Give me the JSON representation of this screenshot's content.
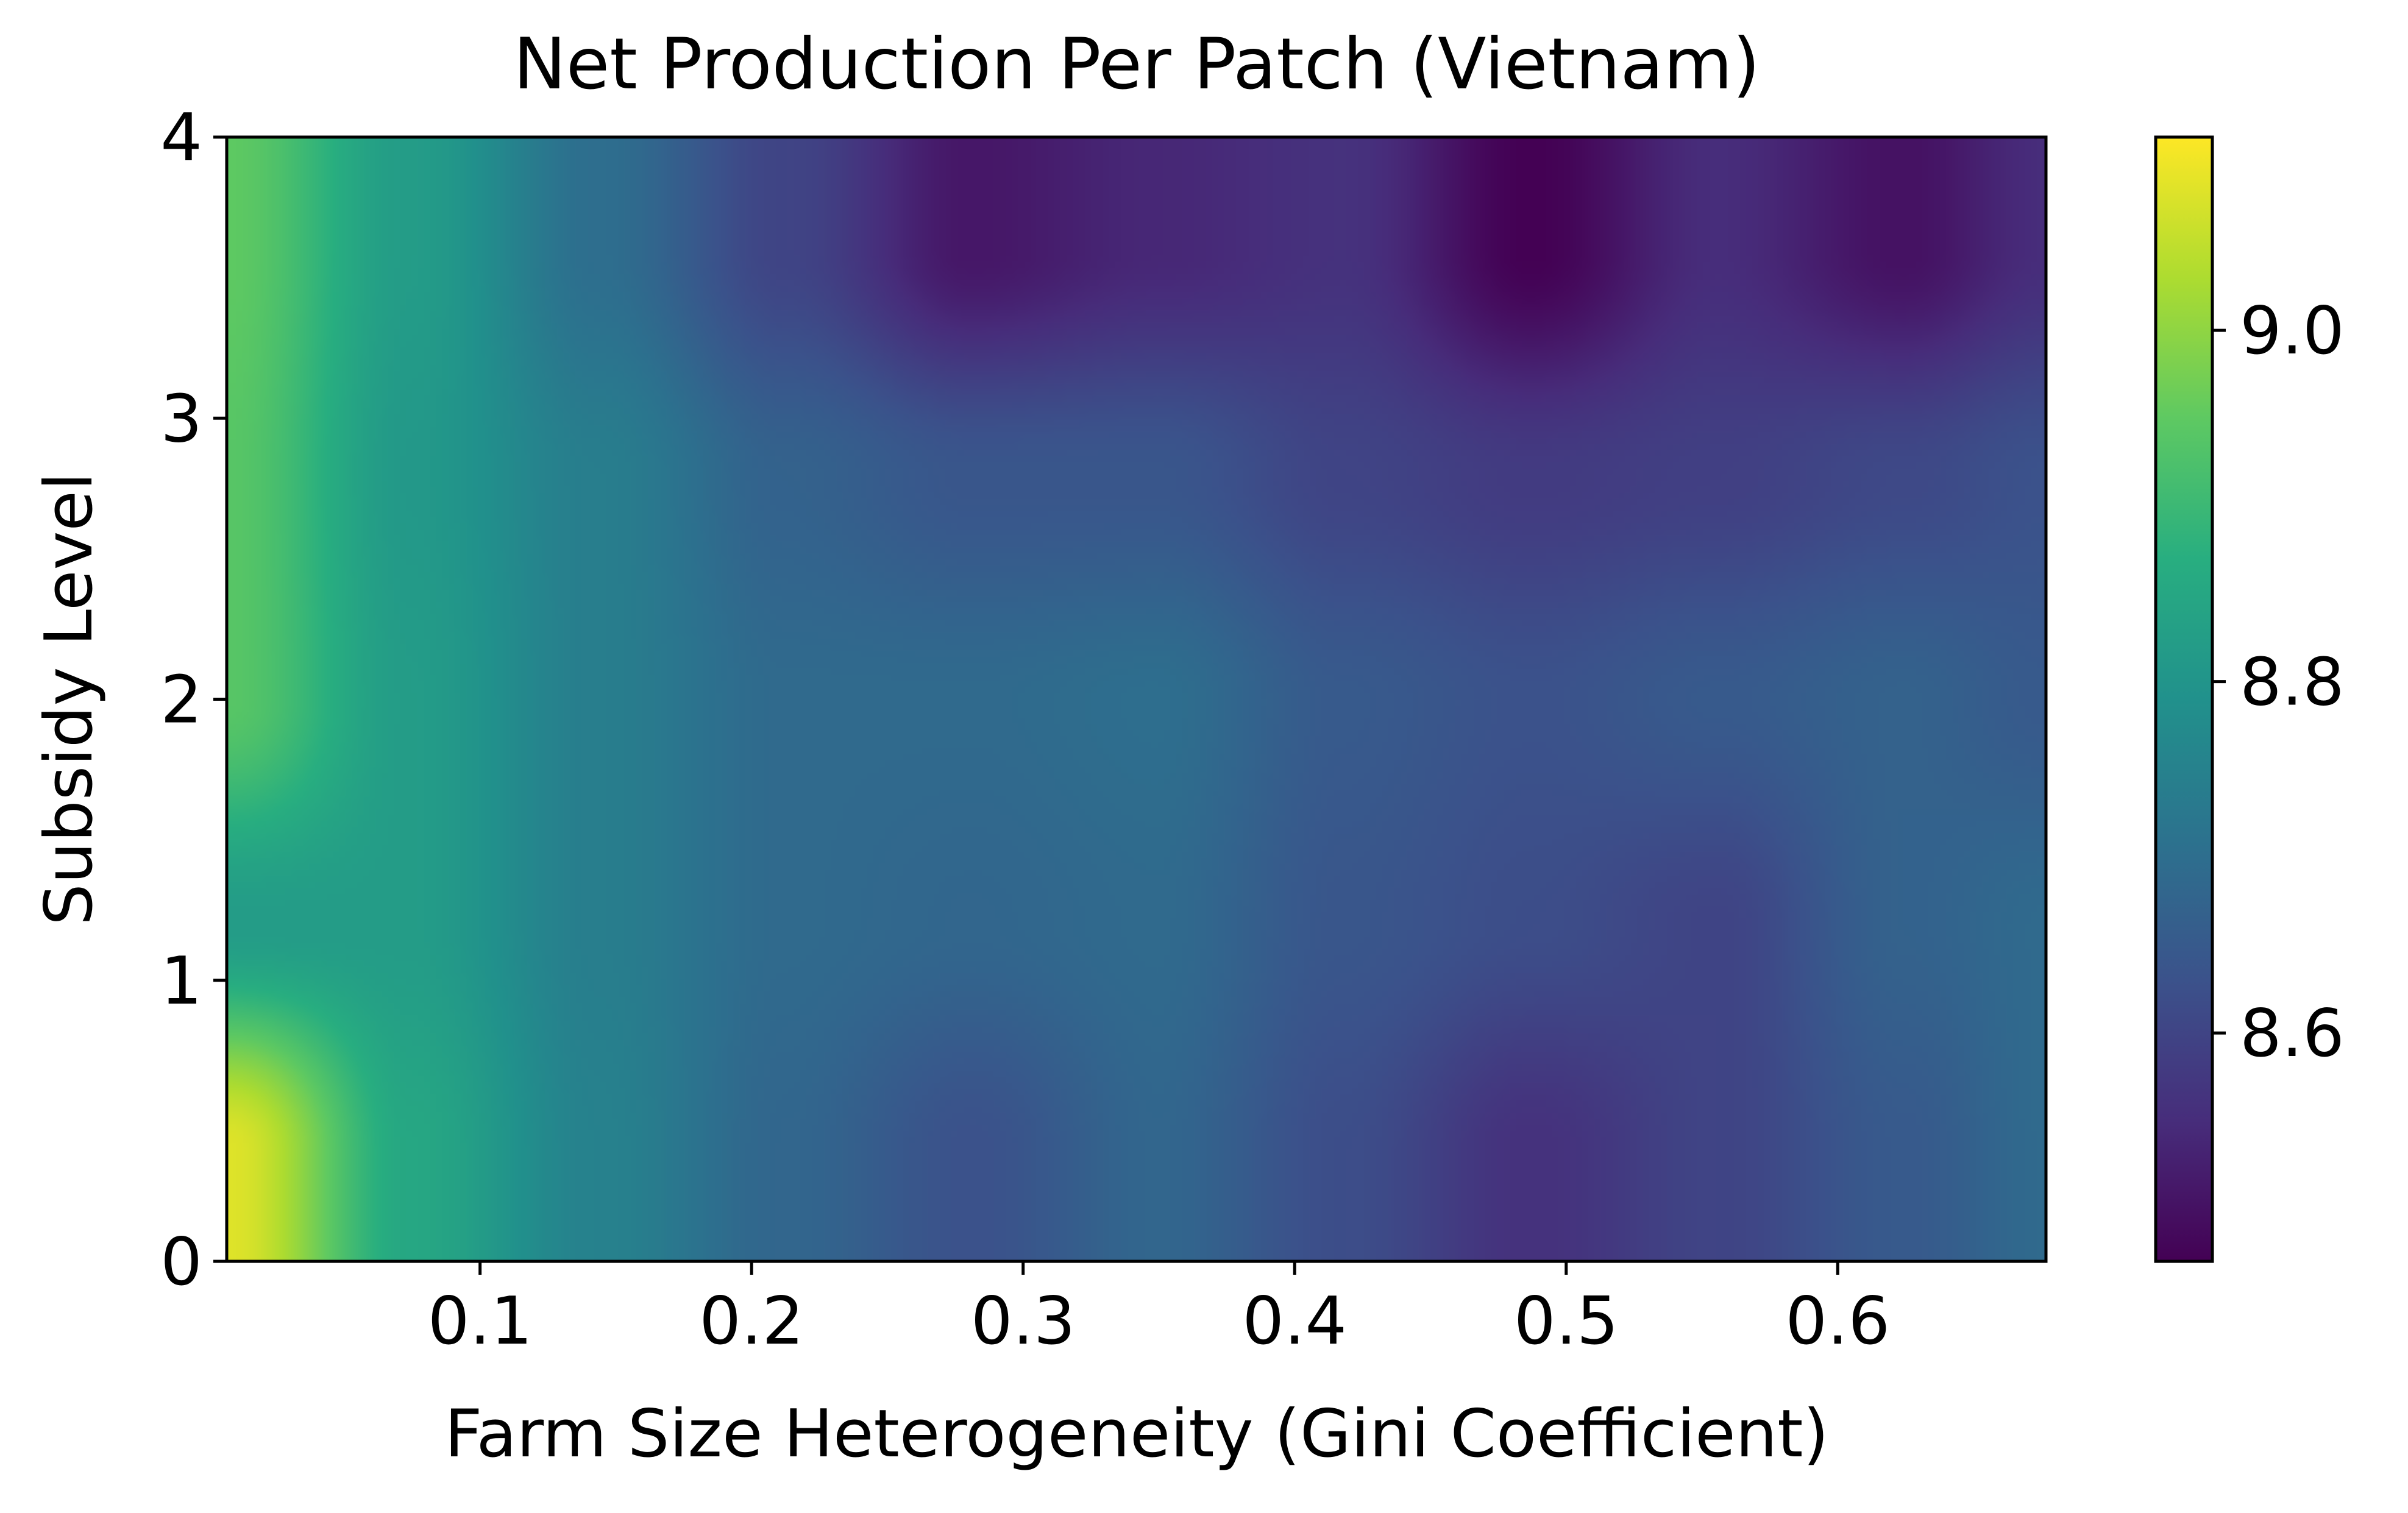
{
  "chart_data": {
    "type": "heatmap",
    "title": "Net Production Per Patch (Vietnam)",
    "xlabel": "Farm Size Heterogeneity (Gini Coefficient)",
    "ylabel": "Subsidy Level",
    "colormap": "viridis",
    "interpolation": "smooth",
    "xlim": [
      0.0067,
      0.6767
    ],
    "ylim": [
      0,
      4
    ],
    "xticks": [
      0.1,
      0.2,
      0.3,
      0.4,
      0.5,
      0.6
    ],
    "xtick_labels": [
      "0.1",
      "0.2",
      "0.3",
      "0.4",
      "0.5",
      "0.6"
    ],
    "yticks": [
      0,
      1,
      2,
      3,
      4
    ],
    "ytick_labels": [
      "0",
      "1",
      "2",
      "3",
      "4"
    ],
    "colorbar": {
      "range": [
        8.47,
        9.11
      ],
      "ticks": [
        8.6,
        8.8,
        9.0
      ],
      "tick_labels": [
        "8.6",
        "8.8",
        "9.0"
      ]
    },
    "x": [
      0.0067,
      0.0753,
      0.1439,
      0.2125,
      0.2811,
      0.3497,
      0.4183,
      0.4869,
      0.5555,
      0.6241,
      0.6767
    ],
    "y": [
      0.4,
      1.2,
      2.0,
      2.8,
      3.6
    ],
    "values": [
      [
        9.08,
        8.85,
        8.75,
        8.68,
        8.63,
        8.68,
        8.62,
        8.56,
        8.6,
        8.65,
        8.69
      ],
      [
        8.82,
        8.82,
        8.74,
        8.69,
        8.68,
        8.69,
        8.64,
        8.62,
        8.6,
        8.67,
        8.69
      ],
      [
        8.94,
        8.82,
        8.74,
        8.69,
        8.69,
        8.7,
        8.65,
        8.63,
        8.65,
        8.67,
        8.65
      ],
      [
        8.94,
        8.81,
        8.74,
        8.67,
        8.64,
        8.64,
        8.6,
        8.58,
        8.59,
        8.61,
        8.63
      ],
      [
        8.95,
        8.82,
        8.7,
        8.6,
        8.51,
        8.54,
        8.56,
        8.47,
        8.55,
        8.5,
        8.55
      ]
    ]
  }
}
